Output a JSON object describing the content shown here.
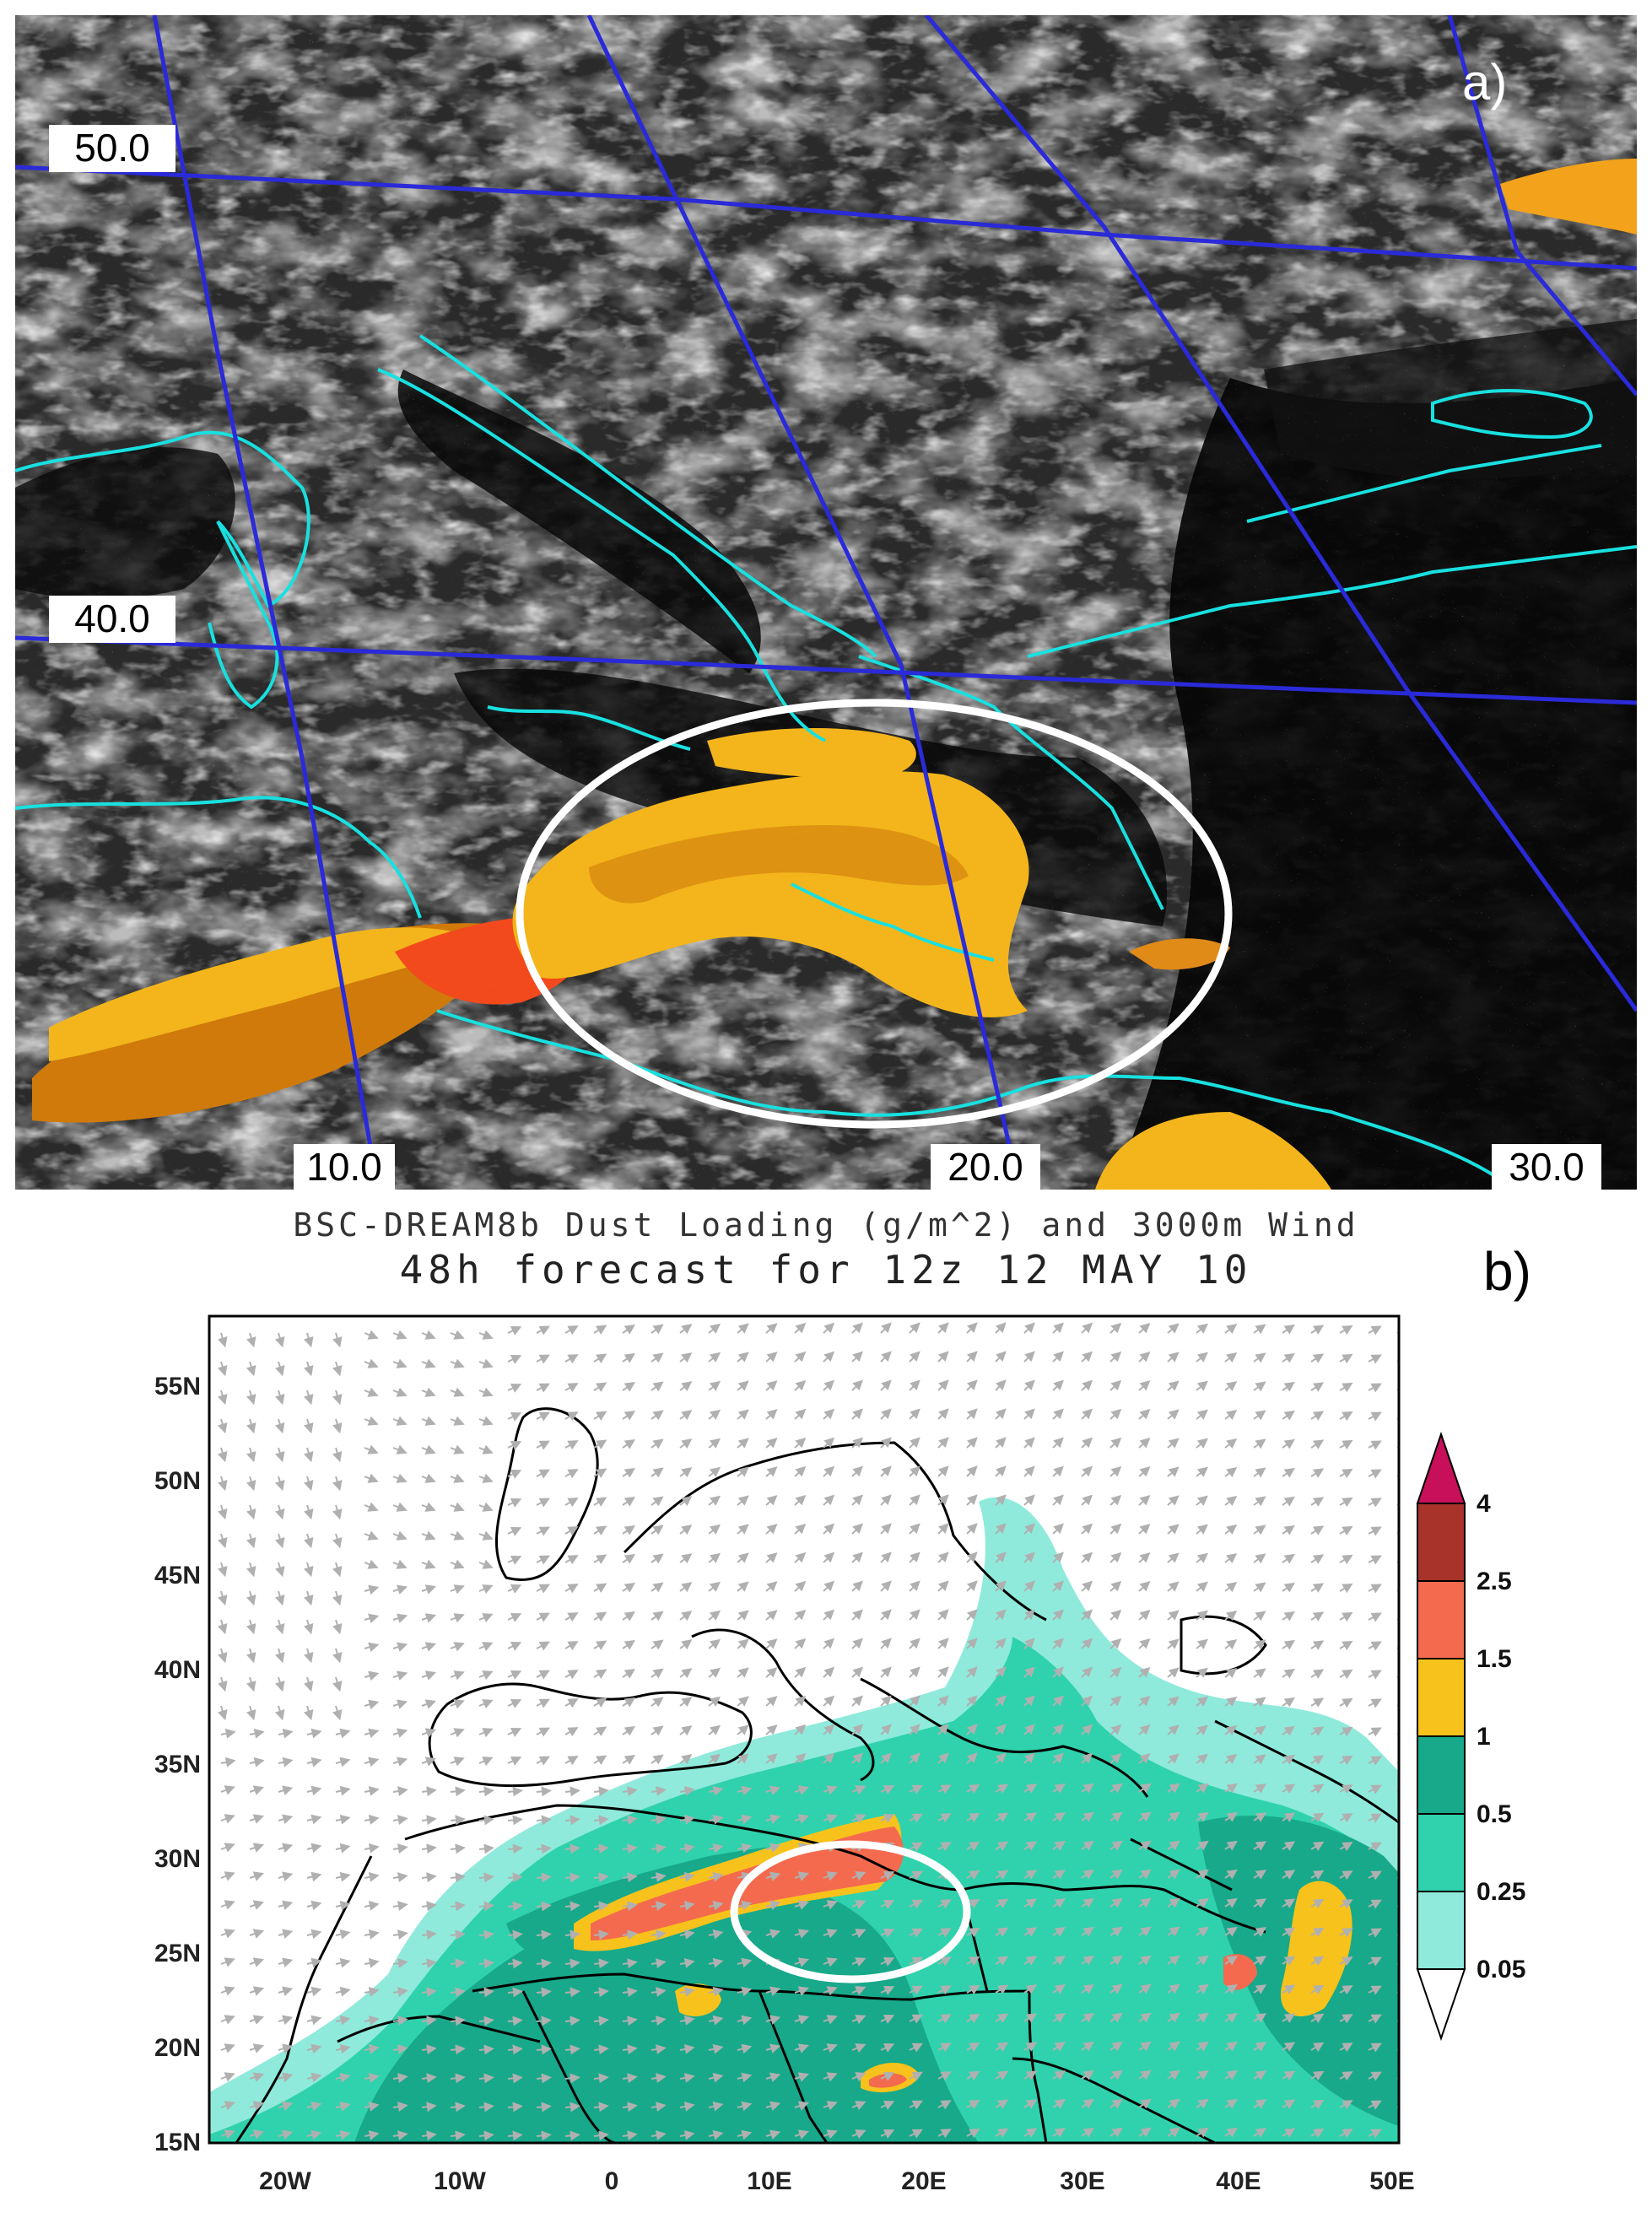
{
  "panel_a": {
    "letter": "a)",
    "lat_labels": [
      "50.0",
      "40.0"
    ],
    "lon_labels": [
      "10.0",
      "20.0",
      "30.0"
    ],
    "colors": {
      "grid": "#2a2ad8",
      "coast": "#19e0e0",
      "dust": "#f3b51b",
      "dust_dark": "#d88a10",
      "dust_red": "#f24a1c",
      "ellipse": "#ffffff"
    }
  },
  "panel_b": {
    "title_line1": "BSC-DREAM8b Dust Loading (g/m^2) and 3000m Wind",
    "title_line2": "48h forecast for 12z 12 MAY 10",
    "letter": "b)",
    "y_ticks": [
      "55N",
      "50N",
      "45N",
      "40N",
      "35N",
      "30N",
      "25N",
      "20N",
      "15N"
    ],
    "x_ticks": [
      "20W",
      "10W",
      "0",
      "10E",
      "20E",
      "30E",
      "40E",
      "50E"
    ],
    "colorbar_labels": [
      "4",
      "2.5",
      "1.5",
      "1",
      "0.5",
      "0.25",
      "0.05"
    ],
    "colorbar_colors": [
      "#c8105a",
      "#a8332a",
      "#f46a4e",
      "#f8c21c",
      "#17a98a",
      "#2fd2ac",
      "#8feadb",
      "#ffffff"
    ],
    "colors": {
      "arrow": "#b0b0b0",
      "coast": "#000000",
      "ellipse": "#ffffff"
    }
  }
}
